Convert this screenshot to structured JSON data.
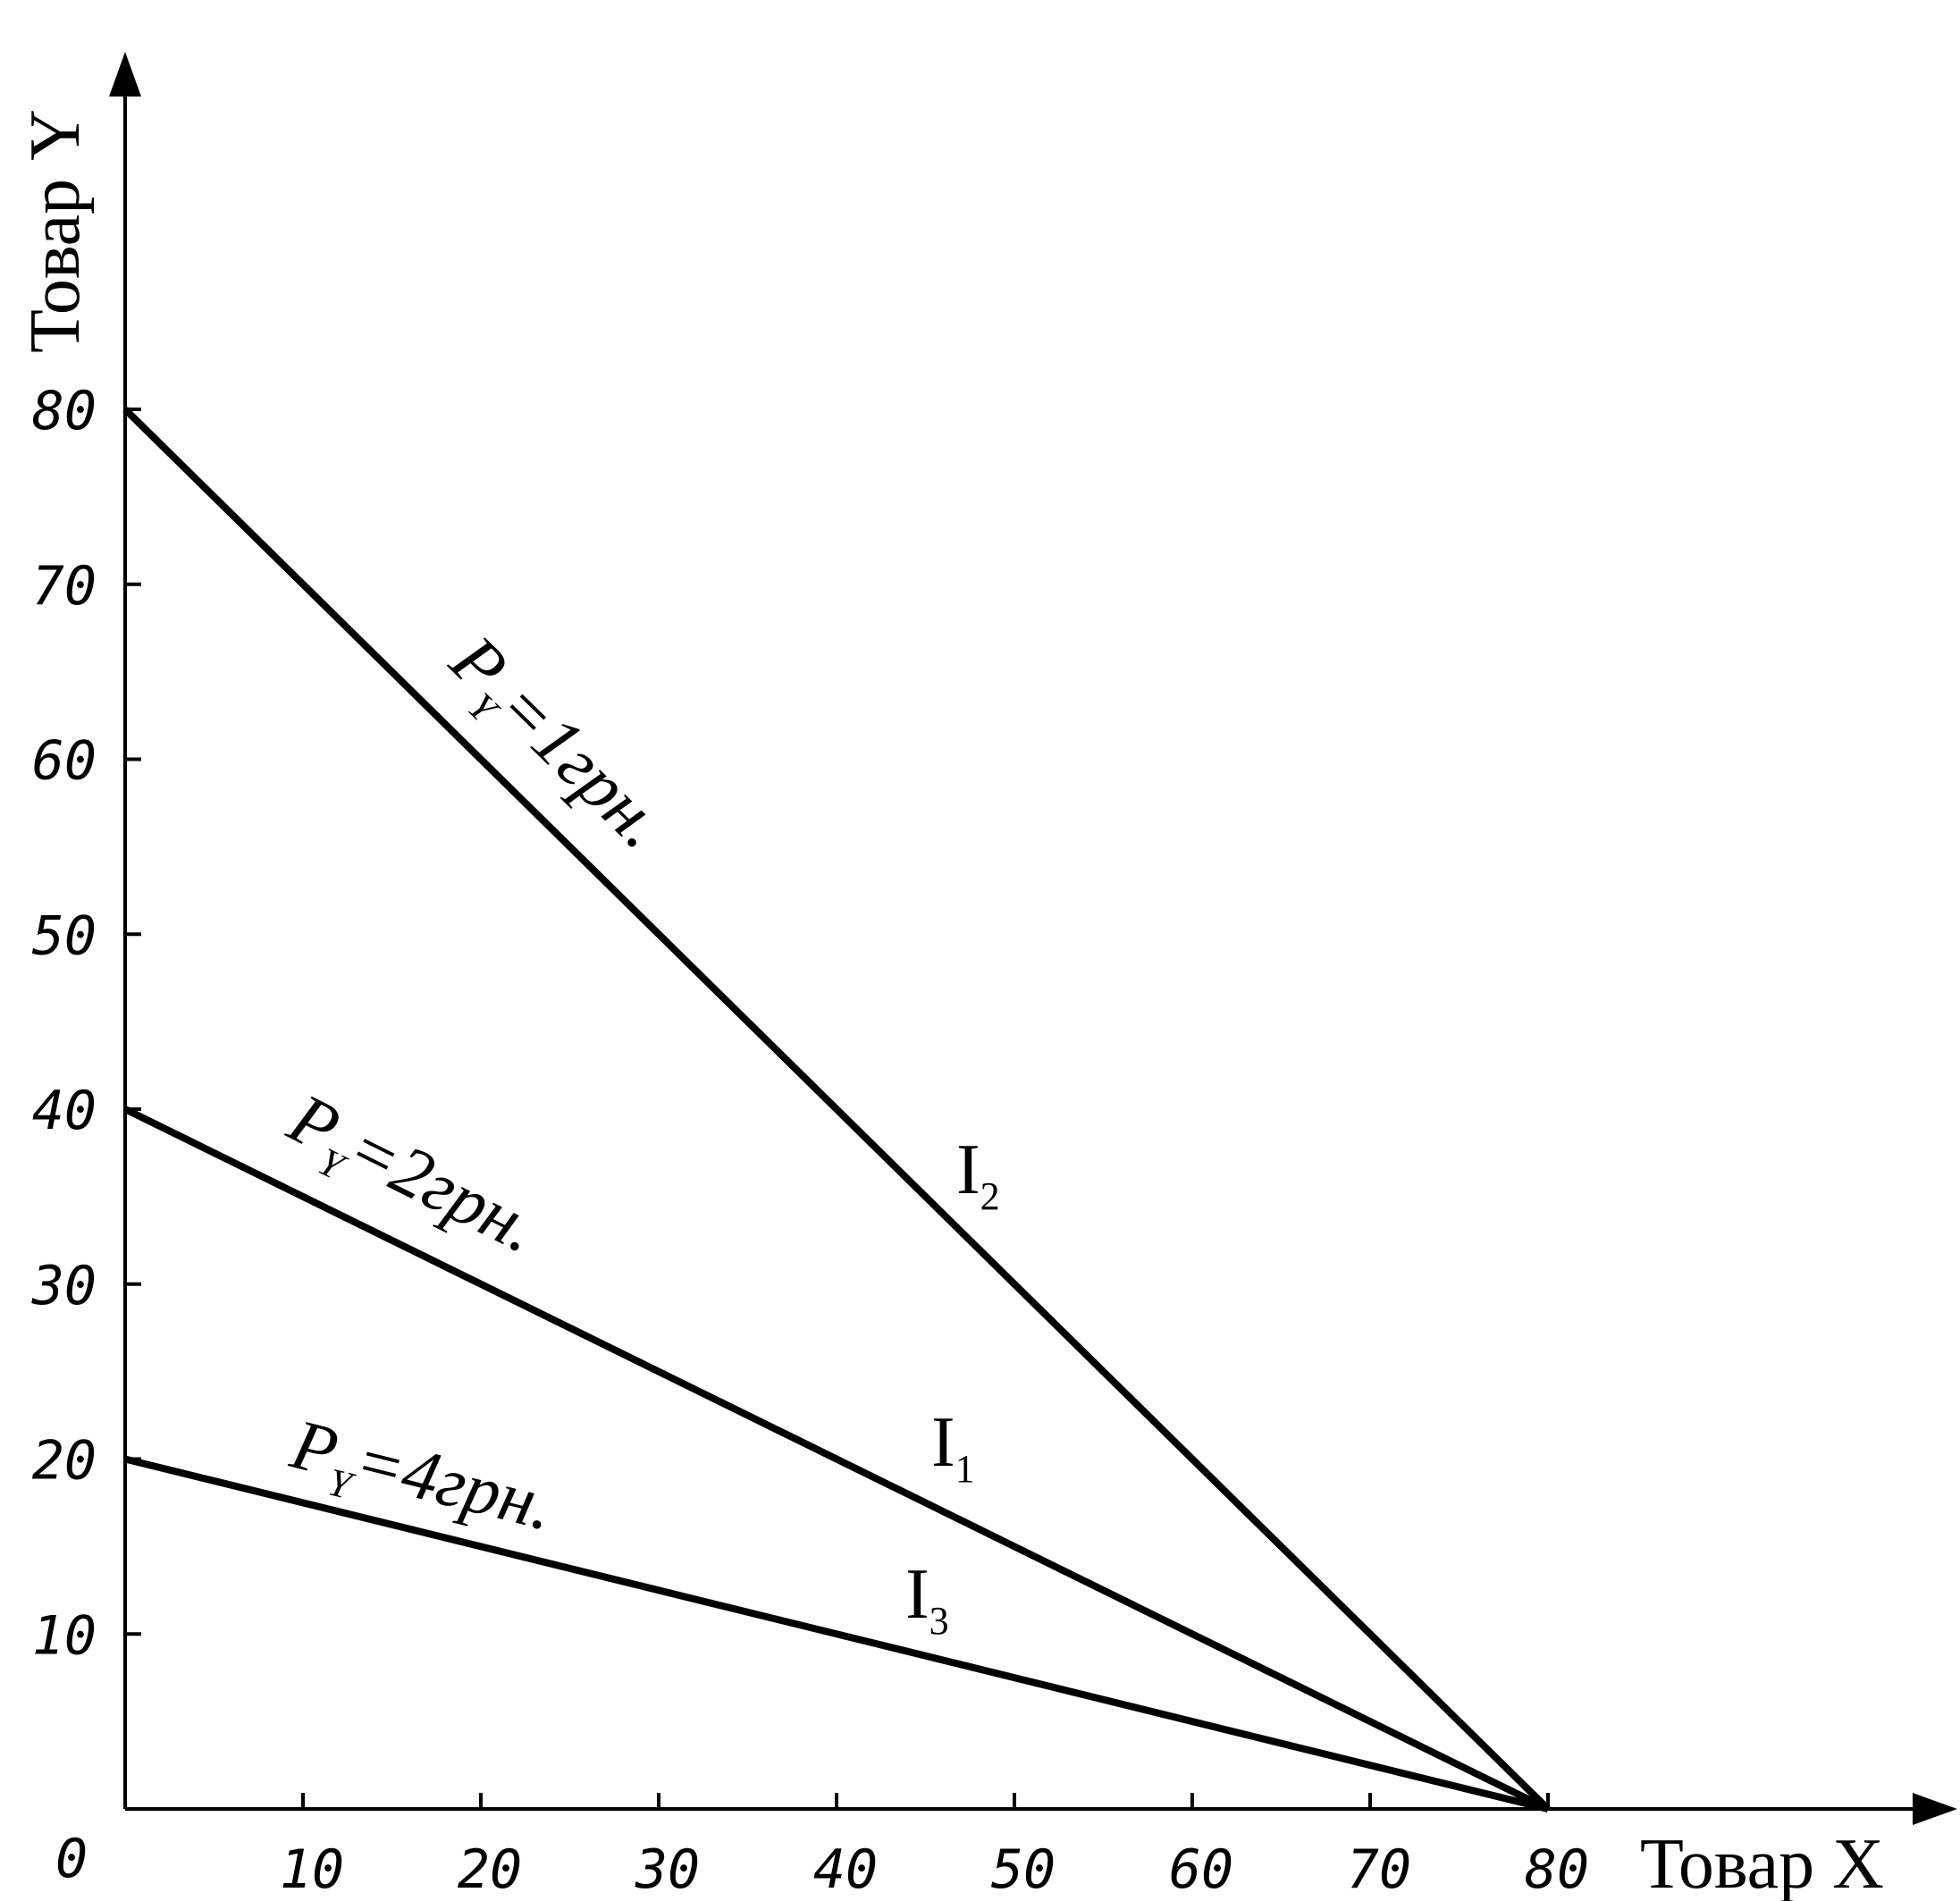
{
  "chart_data": {
    "type": "line",
    "xlabel": "Товар X",
    "ylabel": "Товар Y",
    "origin_label": "0",
    "xlim": [
      0,
      100
    ],
    "ylim": [
      0,
      100
    ],
    "x_ticks": [
      10,
      20,
      30,
      40,
      50,
      60,
      70,
      80
    ],
    "y_ticks": [
      10,
      20,
      30,
      40,
      50,
      60,
      70,
      80
    ],
    "grid": false,
    "series": [
      {
        "name": "I2",
        "x": [
          0,
          80
        ],
        "values": [
          80,
          0
        ]
      },
      {
        "name": "I1",
        "x": [
          0,
          80
        ],
        "values": [
          40,
          0
        ]
      },
      {
        "name": "I3",
        "x": [
          0,
          80
        ],
        "values": [
          20,
          0
        ]
      }
    ],
    "line_labels": [
      {
        "series": "I2",
        "label_main": "I",
        "label_sub": "2",
        "price_main": "P",
        "price_sub": "Y",
        "price_text": "=1грн."
      },
      {
        "series": "I1",
        "label_main": "I",
        "label_sub": "1",
        "price_main": "P",
        "price_sub": "Y",
        "price_text": "=2грн."
      },
      {
        "series": "I3",
        "label_main": "I",
        "label_sub": "3",
        "price_main": "P",
        "price_sub": "Y",
        "price_text": "=4грн."
      }
    ]
  }
}
